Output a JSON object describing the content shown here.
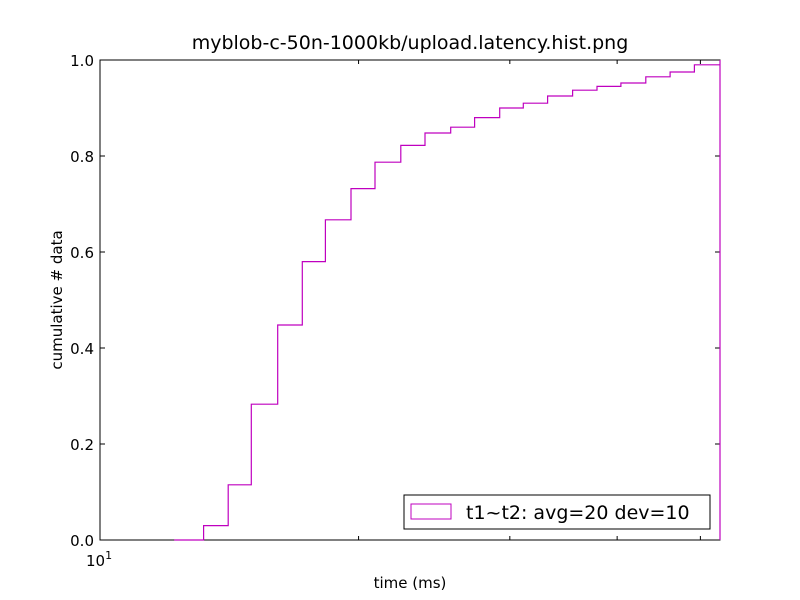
{
  "chart_data": {
    "type": "line",
    "step": true,
    "title": "myblob-c-50n-1000kb/upload.latency.hist.png",
    "xlabel": "time (ms)",
    "ylabel": "cumulative # data",
    "xscale": "log",
    "xlim": [
      10,
      52.7
    ],
    "ylim": [
      0,
      1
    ],
    "x_tick_labels": [
      {
        "value": 10,
        "base": "10",
        "exp": "1"
      }
    ],
    "y_ticks": [
      {
        "value": 0.0,
        "label": "0.0"
      },
      {
        "value": 0.2,
        "label": "0.2"
      },
      {
        "value": 0.4,
        "label": "0.4"
      },
      {
        "value": 0.6,
        "label": "0.6"
      },
      {
        "value": 0.8,
        "label": "0.8"
      },
      {
        "value": 1.0,
        "label": "1.0"
      }
    ],
    "grid": false,
    "legend_position": "lower-right",
    "series": [
      {
        "name": "t1~t2: avg=20 dev=10",
        "color": "#bf00bf",
        "x": [
          12.2,
          13.2,
          14.1,
          15.0,
          16.1,
          17.2,
          18.3,
          19.6,
          20.9,
          22.4,
          23.9,
          25.6,
          27.3,
          29.2,
          31.1,
          33.2,
          35.5,
          37.9,
          40.4,
          43.2,
          46.1,
          49.2,
          52.7
        ],
        "y": [
          0.0,
          0.03,
          0.115,
          0.283,
          0.448,
          0.58,
          0.667,
          0.732,
          0.787,
          0.822,
          0.848,
          0.86,
          0.88,
          0.9,
          0.91,
          0.925,
          0.937,
          0.945,
          0.952,
          0.965,
          0.975,
          0.99,
          1.0
        ]
      }
    ]
  }
}
